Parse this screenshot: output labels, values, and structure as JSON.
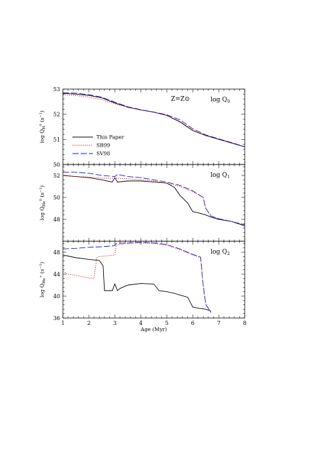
{
  "chart_data": {
    "type": "line",
    "xlabel": "Age (Myr)",
    "xlim": [
      1,
      8
    ],
    "x_ticks": [
      "1",
      "2",
      "3",
      "4",
      "5",
      "6",
      "7",
      "8"
    ],
    "annotation": "Z=Z⊙",
    "legend": {
      "position": "bottom-left of top panel",
      "entries": [
        {
          "label": "This Paper",
          "style": "solid",
          "color": "#000000"
        },
        {
          "label": "SB99",
          "style": "dotted",
          "color": "#e00000"
        },
        {
          "label": "SV98",
          "style": "long-dash",
          "color": "#1a1ad0"
        }
      ]
    },
    "panels": [
      {
        "panel_label": "log Q",
        "panel_sub": "0",
        "ylabel_main": "log Q",
        "ylabel_sub": "H",
        "ylabel_sup": "0",
        "ylabel_unit": "(s",
        "ylabel_unit_sup": "−1",
        "ylabel_close": ")",
        "ylim": [
          50,
          53
        ],
        "y_ticks": [
          50,
          51,
          52,
          53
        ],
        "y_tick_labels": [
          "50",
          "51",
          "52",
          "53"
        ],
        "series": [
          {
            "name": "This Paper",
            "color": "#000000",
            "x": [
              1,
              1.5,
              2,
              2.5,
              3,
              3.5,
              4,
              4.5,
              5,
              5.5,
              6,
              6.5,
              7,
              7.5,
              8
            ],
            "y": [
              52.83,
              52.8,
              52.75,
              52.65,
              52.45,
              52.28,
              52.17,
              52.08,
              51.95,
              51.7,
              51.35,
              51.15,
              51.0,
              50.85,
              50.7
            ]
          },
          {
            "name": "SB99",
            "color": "#e00000",
            "x": [
              1,
              1.5,
              2,
              2.5,
              3,
              3.5,
              4,
              4.5,
              5,
              5.5,
              6,
              6.5,
              7,
              7.5,
              8
            ],
            "y": [
              52.78,
              52.74,
              52.68,
              52.58,
              52.42,
              52.28,
              52.17,
              52.08,
              51.96,
              51.72,
              51.37,
              51.16,
              51.01,
              50.86,
              50.7
            ]
          },
          {
            "name": "SV98",
            "color": "#1a1ad0",
            "x": [
              1,
              1.5,
              2,
              2.5,
              3,
              3.5,
              4,
              4.5,
              5,
              5.5,
              6,
              6.5,
              7,
              7.5,
              8
            ],
            "y": [
              52.85,
              52.84,
              52.78,
              52.68,
              52.48,
              52.3,
              52.18,
              52.09,
              51.98,
              51.78,
              51.42,
              51.18,
              51.02,
              50.87,
              50.71
            ]
          }
        ]
      },
      {
        "panel_label": "log Q",
        "panel_sub": "1",
        "ylabel_main": "log Q",
        "ylabel_sub": "He",
        "ylabel_sup": "0",
        "ylabel_unit": "(s",
        "ylabel_unit_sup": "−1",
        "ylabel_close": ")",
        "ylim": [
          46,
          53
        ],
        "y_ticks": [
          48,
          50,
          52
        ],
        "y_tick_labels": [
          "48",
          "50",
          "52"
        ],
        "series": [
          {
            "name": "This Paper",
            "color": "#000000",
            "x": [
              1,
              1.5,
              2,
              2.5,
              2.9,
              3.0,
              3.1,
              3.5,
              4,
              4.5,
              5,
              5.3,
              5.5,
              5.8,
              6.0,
              6.2,
              6.5,
              6.7,
              7,
              7.5,
              8
            ],
            "y": [
              52.0,
              51.9,
              51.8,
              51.6,
              51.4,
              51.8,
              51.4,
              51.5,
              51.5,
              51.4,
              51.3,
              50.9,
              50.2,
              49.5,
              48.7,
              48.6,
              48.4,
              48.2,
              48.0,
              47.8,
              47.4
            ]
          },
          {
            "name": "SB99",
            "color": "#e00000",
            "x": [
              1,
              1.5,
              2,
              2.5,
              3,
              3.5,
              4,
              4.5,
              5,
              5.5,
              6,
              6.4,
              6.5,
              6.7,
              7,
              7.5,
              8
            ],
            "y": [
              52.0,
              51.9,
              51.85,
              51.75,
              51.75,
              51.7,
              51.6,
              51.5,
              51.3,
              51.0,
              50.5,
              50.0,
              49.0,
              48.3,
              48.05,
              47.8,
              47.5
            ]
          },
          {
            "name": "SV98",
            "color": "#1a1ad0",
            "x": [
              1,
              1.5,
              2,
              2.5,
              3,
              3.1,
              3.5,
              4,
              4.5,
              5,
              5.5,
              6,
              6.4,
              6.5,
              6.7,
              7,
              7.5,
              8
            ],
            "y": [
              52.3,
              52.3,
              52.2,
              52.0,
              51.9,
              52.1,
              51.9,
              51.8,
              51.6,
              51.4,
              51.1,
              50.6,
              50.0,
              49.0,
              48.3,
              48.05,
              47.8,
              47.5
            ]
          }
        ]
      },
      {
        "panel_label": "log Q",
        "panel_sub": "2",
        "ylabel_main": "log Q",
        "ylabel_sub": "He",
        "ylabel_sup": "+",
        "ylabel_unit": "(s",
        "ylabel_unit_sup": "−1",
        "ylabel_close": ")",
        "ylim": [
          36,
          50
        ],
        "y_ticks": [
          36,
          40,
          44,
          48
        ],
        "y_tick_labels": [
          "36",
          "40",
          "44",
          "48"
        ],
        "series": [
          {
            "name": "This Paper",
            "color": "#000000",
            "x": [
              1,
              1.5,
              2,
              2.4,
              2.55,
              2.6,
              2.9,
              3.0,
              3.1,
              3.2,
              3.5,
              4,
              4.5,
              4.7,
              5,
              5.3,
              5.5,
              5.8,
              6.0,
              6.2,
              6.5,
              6.7
            ],
            "y": [
              47.5,
              47.0,
              46.7,
              46.5,
              45.5,
              41.0,
              41.0,
              42.2,
              41.0,
              41.4,
              42.0,
              42.3,
              42.2,
              41.0,
              40.8,
              40.5,
              40.2,
              39.8,
              38.0,
              37.8,
              37.6,
              37.3
            ]
          },
          {
            "name": "SB99",
            "color": "#e00000",
            "x": [
              1,
              1.2,
              1.5,
              1.8,
              2.0,
              2.2,
              2.3,
              2.4,
              2.6,
              3.0,
              3.05,
              3.5,
              4,
              4.5,
              5,
              5.5,
              6,
              6.3,
              6.4,
              6.5,
              6.7
            ],
            "y": [
              44.5,
              44.0,
              43.8,
              43.5,
              43.3,
              43.2,
              47.0,
              47.2,
              47.3,
              47.5,
              49.3,
              49.6,
              49.7,
              49.6,
              49.3,
              48.5,
              47.5,
              47.0,
              42.0,
              38.5,
              37.0
            ]
          },
          {
            "name": "SV98",
            "color": "#1a1ad0",
            "x": [
              1,
              1.5,
              2,
              2.5,
              3,
              3.05,
              3.5,
              4,
              4.5,
              5,
              5.5,
              6,
              6.3,
              6.4,
              6.5,
              6.7
            ],
            "y": [
              48.6,
              48.7,
              48.9,
              49.0,
              49.2,
              49.6,
              49.7,
              49.8,
              49.7,
              49.4,
              48.6,
              47.6,
              47.1,
              42.0,
              38.5,
              37.0
            ]
          }
        ]
      }
    ]
  }
}
